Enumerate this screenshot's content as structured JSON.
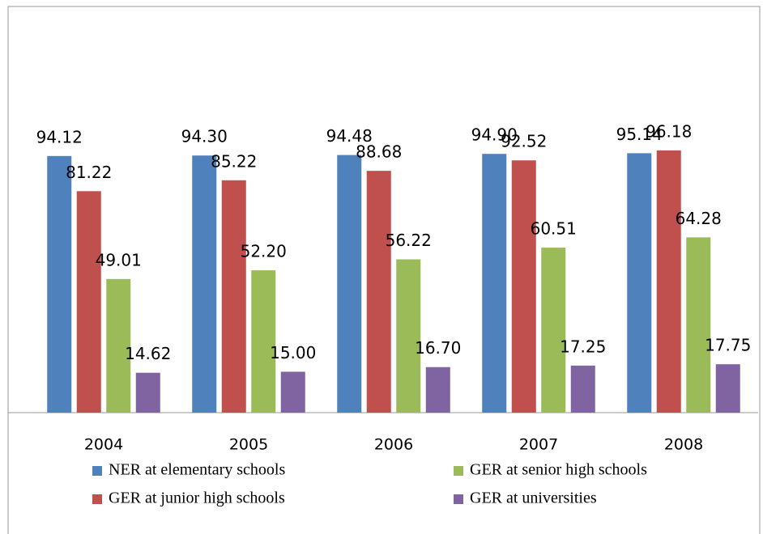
{
  "chart_data": {
    "type": "bar",
    "categories": [
      "2004",
      "2005",
      "2006",
      "2007",
      "2008"
    ],
    "series": [
      {
        "name": "NER at elementary schools",
        "color": "#4f81bd",
        "values": [
          94.12,
          94.3,
          94.48,
          94.9,
          95.14
        ],
        "value_labels": [
          "94.12",
          "94.30",
          "94.48",
          "94.90",
          "95.14"
        ]
      },
      {
        "name": "GER at junior high schools",
        "color": "#c0504d",
        "values": [
          81.22,
          85.22,
          88.68,
          92.52,
          96.18
        ],
        "value_labels": [
          "81.22",
          "85.22",
          "88.68",
          "92.52",
          "96.18"
        ]
      },
      {
        "name": "GER at senior high schools",
        "color": "#9bbb59",
        "values": [
          49.01,
          52.2,
          56.22,
          60.51,
          64.28
        ],
        "value_labels": [
          "49.01",
          "52.20",
          "56.22",
          "60.51",
          "64.28"
        ]
      },
      {
        "name": "GER at universities",
        "color": "#8064a2",
        "values": [
          14.62,
          15.0,
          16.7,
          17.25,
          17.75
        ],
        "value_labels": [
          "14.62",
          "15.00",
          "16.70",
          "17.25",
          "17.75"
        ]
      }
    ],
    "ylim": [
      0,
      100
    ]
  }
}
